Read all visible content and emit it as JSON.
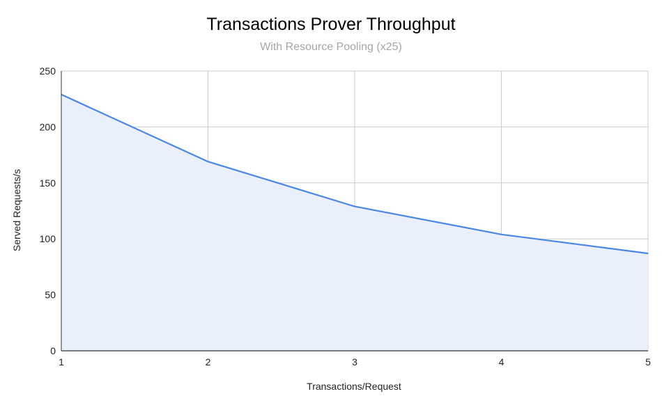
{
  "chart_data": {
    "type": "area",
    "title": "Transactions Prover Throughput",
    "subtitle": "With Resource Pooling (x25)",
    "xlabel": "Transactions/Request",
    "ylabel": "Served Requests/s",
    "x": [
      1,
      2,
      3,
      4,
      5
    ],
    "series": [
      {
        "values": [
          229,
          169,
          129,
          104,
          87
        ]
      }
    ],
    "xlim": [
      1,
      5
    ],
    "ylim": [
      0,
      250
    ],
    "xticks": [
      "1",
      "2",
      "3",
      "4",
      "5"
    ],
    "yticks": [
      "0",
      "50",
      "100",
      "150",
      "200",
      "250"
    ],
    "grid": true,
    "legend": "none",
    "colors": {
      "line": "#4a86e8",
      "fill": "#e9effb",
      "grid": "#cccccc",
      "axis": "#333333"
    }
  }
}
